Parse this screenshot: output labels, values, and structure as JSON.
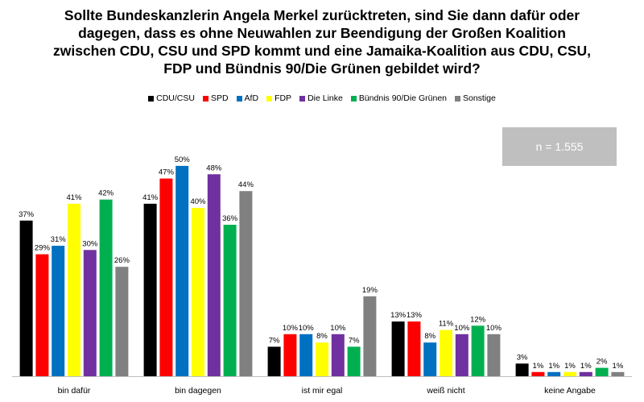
{
  "title": "Sollte Bundeskanzlerin Angela Merkel zurücktreten, sind Sie dann dafür oder dagegen, dass es ohne Neuwahlen zur Beendigung der Großen Koalition zwischen CDU, CSU und SPD kommt und eine Jamaika-Koalition aus CDU, CSU, FDP und Bündnis 90/Die Grünen gebildet wird?",
  "n_label": "n = 1.555",
  "chart_data": {
    "type": "bar",
    "title": "Sollte Bundeskanzlerin Angela Merkel zurücktreten, sind Sie dann dafür oder dagegen, dass es ohne Neuwahlen zur Beendigung der Großen Koalition zwischen CDU, CSU und SPD kommt und eine Jamaika-Koalition aus CDU, CSU, FDP und Bündnis 90/Die Grünen gebildet wird?",
    "categories": [
      "bin dafür",
      "bin dagegen",
      "ist mir egal",
      "weiß nicht",
      "keine Angabe"
    ],
    "series": [
      {
        "name": "CDU/CSU",
        "color": "#000000",
        "values": [
          37,
          41,
          7,
          13,
          3
        ]
      },
      {
        "name": "SPD",
        "color": "#ff0000",
        "values": [
          29,
          47,
          10,
          13,
          1
        ]
      },
      {
        "name": "AfD",
        "color": "#0070c0",
        "values": [
          31,
          50,
          10,
          8,
          1
        ]
      },
      {
        "name": "FDP",
        "color": "#ffff00",
        "values": [
          41,
          40,
          8,
          11,
          1
        ]
      },
      {
        "name": "Die Linke",
        "color": "#7030a0",
        "values": [
          30,
          48,
          10,
          10,
          1
        ]
      },
      {
        "name": "Bündnis 90/Die Grünen",
        "color": "#00b050",
        "values": [
          42,
          36,
          7,
          12,
          2
        ]
      },
      {
        "name": "Sonstige",
        "color": "#808080",
        "values": [
          26,
          44,
          19,
          10,
          1
        ]
      }
    ],
    "value_suffix": "%",
    "ylim": [
      0,
      54
    ],
    "legend_position": "top-center",
    "grid": false
  }
}
